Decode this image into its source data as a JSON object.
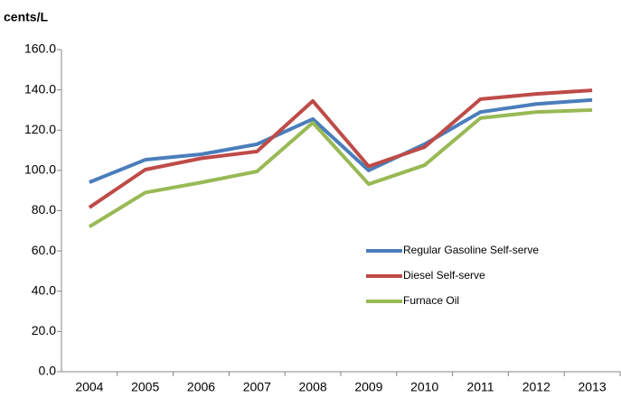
{
  "chart_data": {
    "type": "line",
    "y_label": "cents/L",
    "categories": [
      "2004",
      "2005",
      "2006",
      "2007",
      "2008",
      "2009",
      "2010",
      "2011",
      "2012",
      "2013"
    ],
    "series": [
      {
        "name": "Regular Gasoline Self-serve",
        "color": "#4a7ebb",
        "values": [
          94.1,
          105.3,
          108,
          113,
          125.5,
          100,
          113,
          129,
          133,
          135
        ]
      },
      {
        "name": "Diesel Self-serve",
        "color": "#be4b48",
        "values": [
          81.6,
          100.4,
          106,
          109.4,
          134.5,
          102,
          111.6,
          135.4,
          138,
          139.8
        ]
      },
      {
        "name": "Furnace Oil",
        "color": "#98b954",
        "values": [
          72,
          89,
          94,
          99.5,
          123.7,
          93.2,
          102.6,
          126,
          129,
          130
        ]
      }
    ],
    "ylim": [
      0,
      160
    ],
    "yticks": [
      {
        "value": 0,
        "label": "0.0"
      },
      {
        "value": 20,
        "label": "20.0"
      },
      {
        "value": 40,
        "label": "40.0"
      },
      {
        "value": 60,
        "label": "60.0"
      },
      {
        "value": 80,
        "label": "80.0"
      },
      {
        "value": 100,
        "label": "100.0"
      },
      {
        "value": 120,
        "label": "120.0"
      },
      {
        "value": 140,
        "label": "140.0"
      },
      {
        "value": 160,
        "label": "160.0"
      }
    ],
    "grid": false,
    "legend": "inside"
  }
}
